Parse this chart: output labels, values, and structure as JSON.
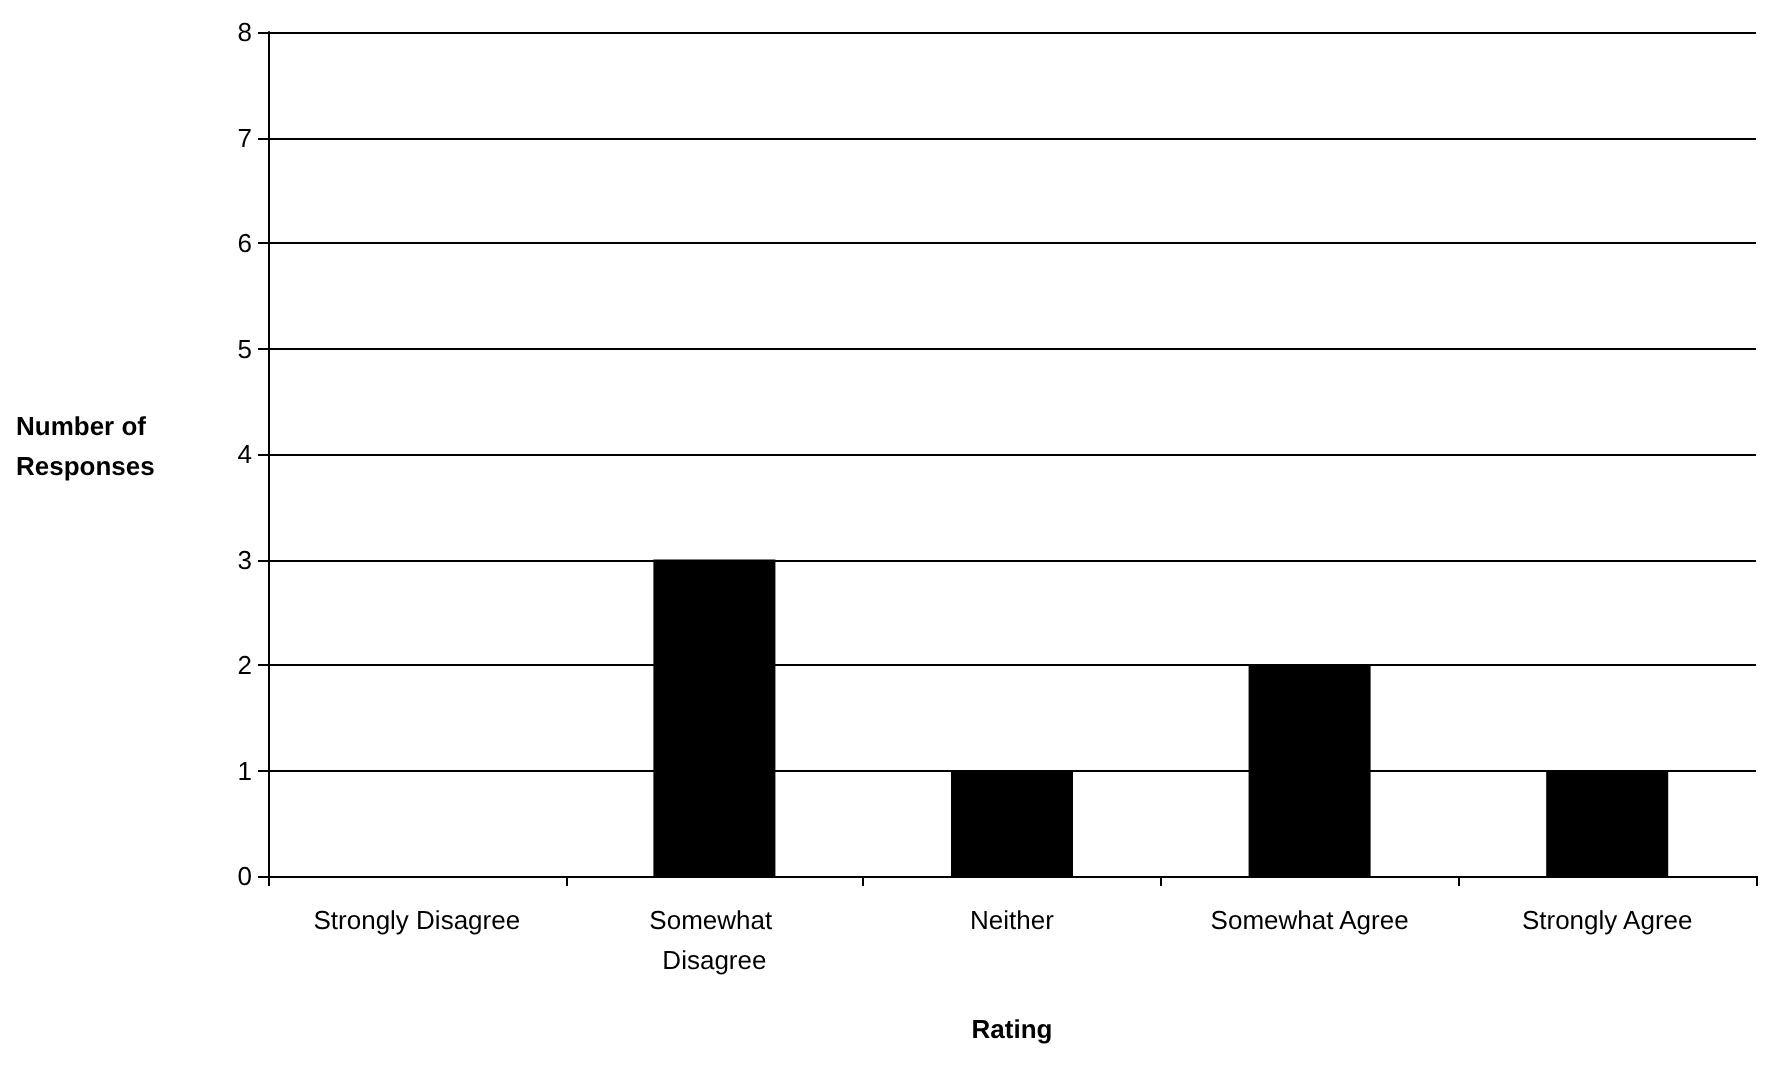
{
  "chart_data": {
    "type": "bar",
    "xlabel": "Rating",
    "ylabel": "Number of Responses",
    "categories": [
      "Strongly Disagree",
      "Somewhat Disagree",
      "Neither",
      "Somewhat Agree",
      "Strongly Agree"
    ],
    "values": [
      0,
      3,
      1,
      2,
      1
    ],
    "color": "#000000",
    "ylim": [
      0,
      8
    ],
    "yticks": [
      0,
      1,
      2,
      3,
      4,
      5,
      6,
      7,
      8
    ],
    "grid": "y"
  }
}
